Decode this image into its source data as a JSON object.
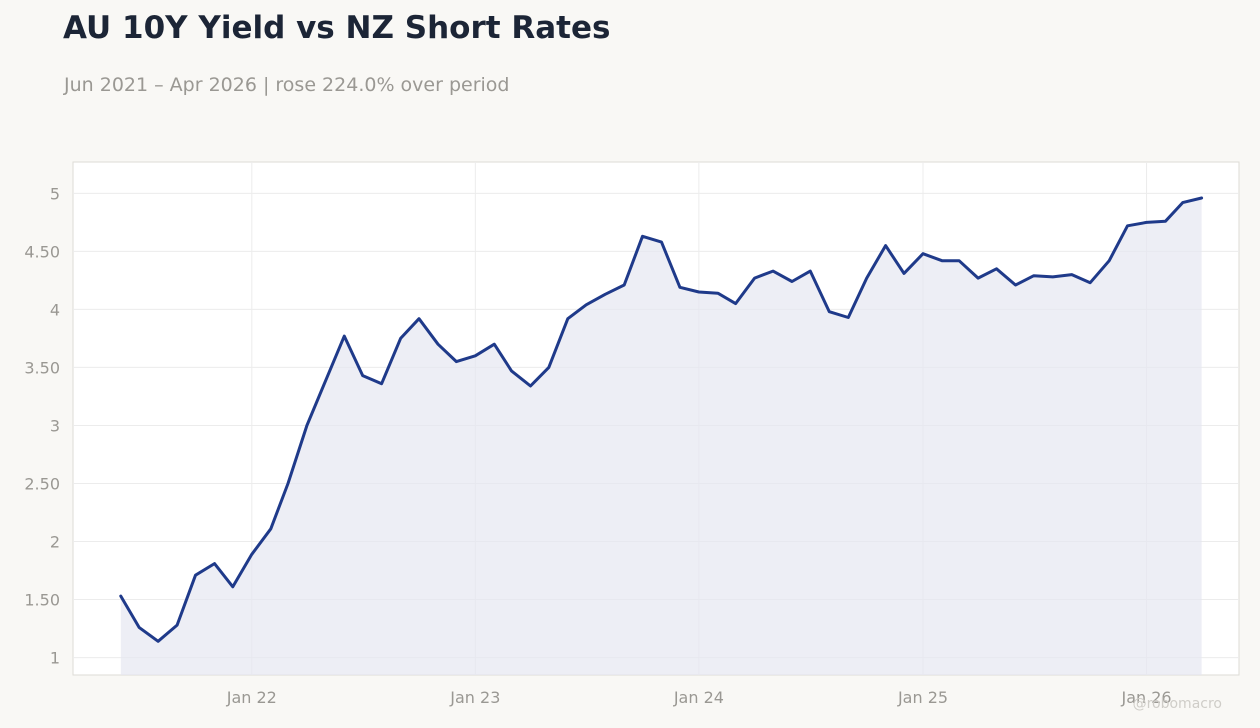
{
  "title": "AU 10Y Yield vs NZ Short Rates",
  "subtitle": "Jun 2021 – Apr 2026 | rose 224.0% over period",
  "watermark": "@robomacro",
  "colors": {
    "line": "#1f3a8a",
    "area": "#e6e7f1",
    "grid": "#ececec",
    "axis_text": "#9a9893",
    "background": "#f9f8f5",
    "plot_background": "#ffffff"
  },
  "chart_data": {
    "type": "area",
    "title": "AU 10Y Yield vs NZ Short Rates",
    "subtitle": "Jun 2021 – Apr 2026 | rose 224.0% over period",
    "xlabel": "",
    "ylabel": "",
    "grid": true,
    "ylim": [
      0.85,
      5.27
    ],
    "xlim": [
      "2021-03-15",
      "2026-06-01"
    ],
    "y_ticks": [
      1,
      1.5,
      2,
      2.5,
      3,
      3.5,
      4,
      4.5,
      5
    ],
    "y_tick_labels": [
      "1",
      "1.50",
      "2",
      "2.50",
      "3",
      "3.50",
      "4",
      "4.50",
      "5"
    ],
    "x_ticks": [
      "2022-01-01",
      "2023-01-01",
      "2024-01-01",
      "2025-01-01",
      "2026-01-01"
    ],
    "x_tick_labels": [
      "Jan 22",
      "Jan 23",
      "Jan 24",
      "Jan 25",
      "Jan 26"
    ],
    "series": [
      {
        "x": [
          "2021-06-01",
          "2021-07-01",
          "2021-08-01",
          "2021-09-01",
          "2021-10-01",
          "2021-11-01",
          "2021-12-01",
          "2022-01-01",
          "2022-02-01",
          "2022-03-01",
          "2022-04-01",
          "2022-05-01",
          "2022-06-01",
          "2022-07-01",
          "2022-08-01",
          "2022-09-01",
          "2022-10-01",
          "2022-11-01",
          "2022-12-01",
          "2023-01-01",
          "2023-02-01",
          "2023-03-01",
          "2023-04-01",
          "2023-05-01",
          "2023-06-01",
          "2023-07-01",
          "2023-08-01",
          "2023-09-01",
          "2023-10-01",
          "2023-11-01",
          "2023-12-01",
          "2024-01-01",
          "2024-02-01",
          "2024-03-01",
          "2024-04-01",
          "2024-05-01",
          "2024-06-01",
          "2024-07-01",
          "2024-08-01",
          "2024-09-01",
          "2024-10-01",
          "2024-11-01",
          "2024-12-01",
          "2025-01-01",
          "2025-02-01",
          "2025-03-01",
          "2025-04-01",
          "2025-05-01",
          "2025-06-01",
          "2025-07-01",
          "2025-08-01",
          "2025-09-01",
          "2025-10-01",
          "2025-11-01",
          "2025-12-01",
          "2026-01-01",
          "2026-02-01",
          "2026-03-01",
          "2026-04-01"
        ],
        "values": [
          1.53,
          1.26,
          1.14,
          1.28,
          1.71,
          1.81,
          1.61,
          1.89,
          2.11,
          2.5,
          3.0,
          3.38,
          3.77,
          3.43,
          3.36,
          3.75,
          3.92,
          3.7,
          3.55,
          3.6,
          3.7,
          3.47,
          3.34,
          3.5,
          3.92,
          4.04,
          4.13,
          4.21,
          4.63,
          4.58,
          4.19,
          4.15,
          4.14,
          4.05,
          4.27,
          4.33,
          4.24,
          4.33,
          3.98,
          3.93,
          4.27,
          4.55,
          4.31,
          4.48,
          4.42,
          4.42,
          4.27,
          4.35,
          4.21,
          4.29,
          4.28,
          4.3,
          4.23,
          4.42,
          4.72,
          4.75,
          4.76,
          4.92,
          4.96
        ]
      }
    ]
  }
}
